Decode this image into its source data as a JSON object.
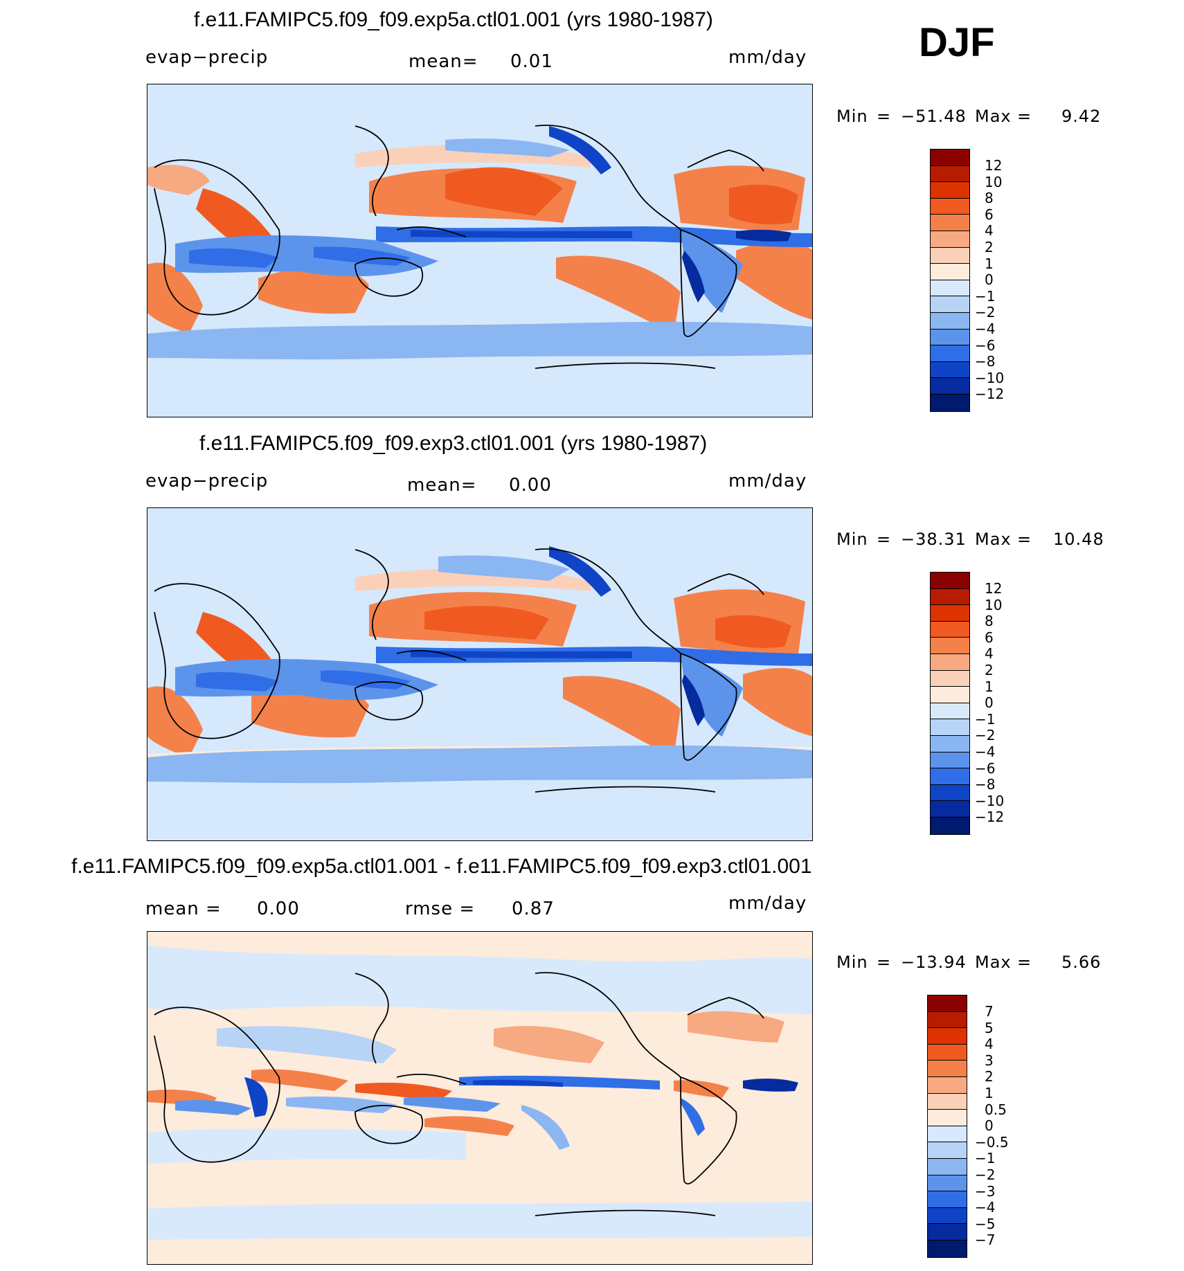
{
  "season": "DJF",
  "panels": [
    {
      "title": "f.e11.FAMIPC5.f09_f09.exp5a.ctl01.001 (yrs 1980-1987)",
      "left_label": "evap−precip",
      "center_label": "mean=",
      "center_value": "0.01",
      "units": "mm/day",
      "stats": {
        "min_label": "Min",
        "min_value": "−51.48",
        "max_label": "Max",
        "max_value": "9.42",
        "eq": "="
      },
      "colorbar_labels": [
        "12",
        "10",
        "8",
        "6",
        "4",
        "2",
        "1",
        "0",
        "−1",
        "−2",
        "−4",
        "−6",
        "−8",
        "−10",
        "−12"
      ]
    },
    {
      "title": "f.e11.FAMIPC5.f09_f09.exp3.ctl01.001 (yrs 1980-1987)",
      "left_label": "evap−precip",
      "center_label": "mean=",
      "center_value": "0.00",
      "units": "mm/day",
      "stats": {
        "min_label": "Min",
        "min_value": "−38.31",
        "max_label": "Max",
        "max_value": "10.48",
        "eq": "="
      },
      "colorbar_labels": [
        "12",
        "10",
        "8",
        "6",
        "4",
        "2",
        "1",
        "0",
        "−1",
        "−2",
        "−4",
        "−6",
        "−8",
        "−10",
        "−12"
      ]
    },
    {
      "title": "f.e11.FAMIPC5.f09_f09.exp5a.ctl01.001 - f.e11.FAMIPC5.f09_f09.exp3.ctl01.001",
      "left_label": "mean  =",
      "left_value": "0.00",
      "center_label": "rmse  =",
      "center_value": "0.87",
      "units": "mm/day",
      "stats": {
        "min_label": "Min",
        "min_value": "−13.94",
        "max_label": "Max",
        "max_value": "5.66",
        "eq": "="
      },
      "colorbar_labels": [
        "7",
        "5",
        "4",
        "3",
        "2",
        "1",
        "0.5",
        "0",
        "−0.5",
        "−1",
        "−2",
        "−3",
        "−4",
        "−5",
        "−7"
      ]
    }
  ],
  "palettes": {
    "main": [
      "#8b0000",
      "#b81c00",
      "#dd3300",
      "#f05a20",
      "#f4814a",
      "#f7a982",
      "#fad0b8",
      "#fdebdc",
      "#d8e9fb",
      "#b7d3f6",
      "#8ab6f2",
      "#5c94ec",
      "#2f6ee6",
      "#1044c6",
      "#052b9e",
      "#001a6e"
    ],
    "diff": [
      "#8b0000",
      "#b81c00",
      "#dd3300",
      "#f05a20",
      "#f4814a",
      "#f7a982",
      "#fad0b8",
      "#fdebdc",
      "#d8e9fb",
      "#b7d3f6",
      "#8ab6f2",
      "#5c94ec",
      "#2f6ee6",
      "#1044c6",
      "#052b9e",
      "#001a6e"
    ]
  }
}
